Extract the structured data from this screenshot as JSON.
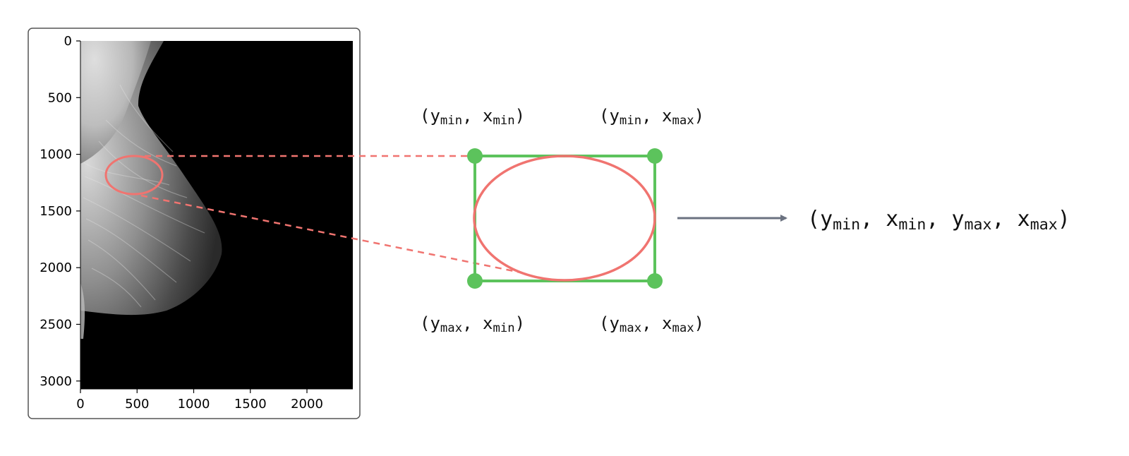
{
  "figure": {
    "axes": {
      "y_ticks": [
        "0",
        "500",
        "1000",
        "1500",
        "2000",
        "2500",
        "3000"
      ],
      "x_ticks": [
        "0",
        "500",
        "1000",
        "1500",
        "2000"
      ]
    },
    "corners": {
      "top_left": {
        "a": "y",
        "a_sub": "min",
        "b": "x",
        "b_sub": "min"
      },
      "top_right": {
        "a": "y",
        "a_sub": "min",
        "b": "x",
        "b_sub": "max"
      },
      "bottom_left": {
        "a": "y",
        "a_sub": "max",
        "b": "x",
        "b_sub": "min"
      },
      "bottom_right": {
        "a": "y",
        "a_sub": "max",
        "b": "x",
        "b_sub": "max"
      }
    },
    "result": {
      "p1": "y",
      "p1_sub": "min",
      "p2": "x",
      "p2_sub": "min",
      "p3": "y",
      "p3_sub": "max",
      "p4": "x",
      "p4_sub": "max"
    },
    "colors": {
      "highlight": "#f07470",
      "box": "#5cc35c",
      "arrow": "#6b7280",
      "frame": "#555555"
    },
    "icons": {
      "arrow": "arrow-right-icon"
    }
  }
}
